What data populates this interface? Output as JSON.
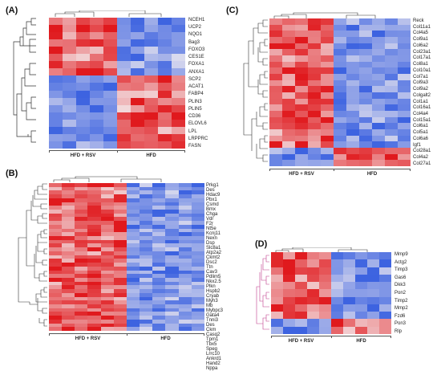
{
  "panels": {
    "A": {
      "label": "(A)",
      "groups": [
        "HFD + RSV",
        "HFD"
      ],
      "genes": [
        "NCEH1",
        "UCP2",
        "NQO1",
        "Bag3",
        "FOXO3",
        "CES1E",
        "FOXA1",
        "ANXA1",
        "SCP2",
        "ACAT1",
        "FABP4",
        "PLIN3",
        "PLIN5",
        "CD36",
        "ELOVL6",
        "LPL",
        "LRPPRC",
        "FASN"
      ]
    },
    "B": {
      "label": "(B)",
      "groups": [
        "HFD + RSV",
        "HFD"
      ],
      "genes": [
        "Prkg1",
        "Des",
        "Hdac9",
        "Pbx1",
        "Csmd",
        "Bmx",
        "Chga",
        "Vdr",
        "F2r",
        "Nt5e",
        "Kcnj11",
        "Nexn",
        "Dsp",
        "Slc8a1",
        "Atp2a2",
        "Ckmt2",
        "Dsc2",
        "Ttn",
        "Cav3",
        "Pdlim5",
        "Nkx2.5",
        "Plkn",
        "Hspb2",
        "Cryab",
        "Myh3",
        "Mb",
        "Mybpc3",
        "Gata4",
        "Tnni3",
        "Des",
        "Ckm",
        "Casq2",
        "Tpm1",
        "Tbx5",
        "Speg",
        "Lrrc10",
        "Ankrd1",
        "Hand2",
        "Nppa"
      ]
    },
    "C": {
      "label": "(C)",
      "groups": [
        "HFD + RSV",
        "HFD"
      ],
      "genes": [
        "Reck",
        "Col11a1",
        "Col4a5",
        "Col9a1",
        "Col6a2",
        "Col23a1",
        "Col17a1",
        "Col8a1",
        "Col10a1",
        "Col7a1",
        "Col9a3",
        "Col9a2",
        "Colgalt2",
        "Col1a1",
        "Col16a1",
        "Col4a4",
        "Col15a1",
        "Col6a1",
        "Col5a1",
        "Col6a6",
        "Igf1",
        "Col28a1",
        "Col4a2",
        "Col27a1"
      ]
    },
    "D": {
      "label": "(D)",
      "groups": [
        "HFD + RSV",
        "HFD"
      ],
      "genes": [
        "Mmp9",
        "Actg2",
        "Timp3",
        "Gas6",
        "Dkk3",
        "Pon2",
        "Timp2",
        "Mmp2",
        "Fzd6",
        "Pon3",
        "Rlp"
      ]
    }
  },
  "colors": {
    "high": "#e0191d",
    "mid": "#f4eef0",
    "low": "#3d63e0"
  }
}
